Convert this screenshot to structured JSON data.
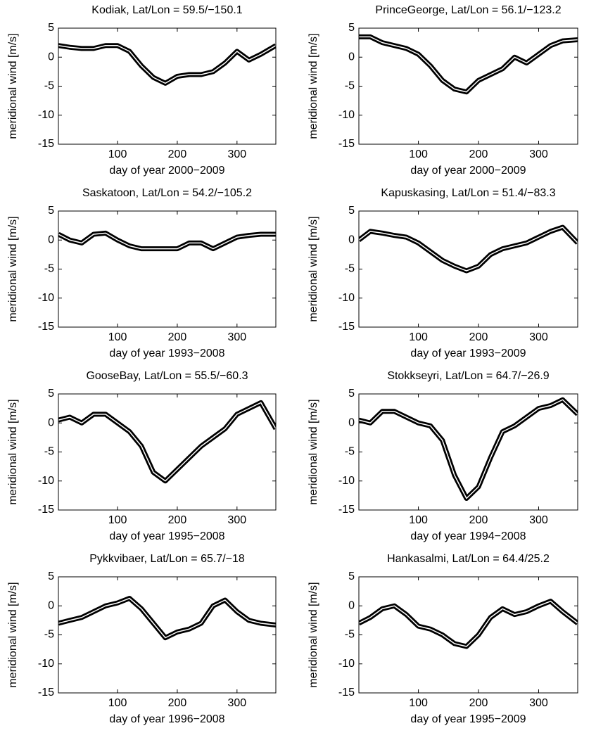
{
  "chart_data": [
    {
      "type": "line",
      "title": "Kodiak, Lat/Lon = 59.5/−150.1",
      "x_label": "day of year 2000−2009",
      "y_label": "meridional wind [m/s]",
      "x": [
        1,
        20,
        40,
        60,
        80,
        100,
        120,
        140,
        160,
        180,
        200,
        220,
        240,
        260,
        280,
        300,
        320,
        340,
        365
      ],
      "series": [
        {
          "color": "#000000",
          "values": [
            2,
            1.7,
            1.5,
            1.5,
            2,
            2,
            1,
            -1.5,
            -3.5,
            -4.5,
            -3.3,
            -3,
            -3,
            -2.5,
            -1,
            1,
            -0.5,
            0.5,
            2
          ]
        }
      ],
      "xlim": [
        1,
        365
      ],
      "xticks": [
        100,
        200,
        300
      ],
      "ylim": [
        -15,
        5
      ],
      "yticks": [
        5,
        0,
        -5,
        -10,
        -15
      ]
    },
    {
      "type": "line",
      "title": "PrinceGeorge, Lat/Lon = 56.1/−123.2",
      "x_label": "day of year 2000−2009",
      "y_label": "meridional wind [m/s]",
      "x": [
        1,
        20,
        40,
        60,
        80,
        100,
        120,
        140,
        160,
        180,
        200,
        220,
        240,
        260,
        280,
        300,
        320,
        340,
        365
      ],
      "series": [
        {
          "color": "#000000",
          "values": [
            3.5,
            3.5,
            2.5,
            2,
            1.5,
            0.5,
            -1.5,
            -4,
            -5.5,
            -6,
            -4,
            -3,
            -2,
            0,
            -1,
            0.5,
            2,
            2.8,
            3
          ]
        }
      ],
      "xlim": [
        1,
        365
      ],
      "xticks": [
        100,
        200,
        300
      ],
      "ylim": [
        -15,
        5
      ],
      "yticks": [
        5,
        0,
        -5,
        -10,
        -15
      ]
    },
    {
      "type": "line",
      "title": "Saskatoon, Lat/Lon = 54.2/−105.2",
      "x_label": "day of year 1993−2008",
      "y_label": "meridional wind [m/s]",
      "x": [
        1,
        20,
        40,
        60,
        80,
        100,
        120,
        140,
        160,
        180,
        200,
        220,
        240,
        260,
        280,
        300,
        320,
        340,
        365
      ],
      "series": [
        {
          "color": "#000000",
          "values": [
            1,
            0,
            -0.5,
            1,
            1.2,
            0,
            -1,
            -1.5,
            -1.5,
            -1.5,
            -1.5,
            -0.5,
            -0.5,
            -1.5,
            -0.5,
            0.5,
            0.8,
            1,
            1
          ]
        }
      ],
      "xlim": [
        1,
        365
      ],
      "xticks": [
        100,
        200,
        300
      ],
      "ylim": [
        -15,
        5
      ],
      "yticks": [
        5,
        0,
        -5,
        -10,
        -15
      ]
    },
    {
      "type": "line",
      "title": "Kapuskasing, Lat/Lon = 51.4/−83.3",
      "x_label": "day of year 1993−2009",
      "y_label": "meridional wind [m/s]",
      "x": [
        1,
        20,
        40,
        60,
        80,
        100,
        120,
        140,
        160,
        180,
        200,
        220,
        240,
        260,
        280,
        300,
        320,
        340,
        365
      ],
      "series": [
        {
          "color": "#000000",
          "values": [
            0,
            1.5,
            1.2,
            0.8,
            0.5,
            -0.5,
            -2,
            -3.5,
            -4.5,
            -5.3,
            -4.5,
            -2.5,
            -1.5,
            -1,
            -0.5,
            0.5,
            1.5,
            2.2,
            -0.5
          ]
        }
      ],
      "xlim": [
        1,
        365
      ],
      "xticks": [
        100,
        200,
        300
      ],
      "ylim": [
        -15,
        5
      ],
      "yticks": [
        5,
        0,
        -5,
        -10,
        -15
      ]
    },
    {
      "type": "line",
      "title": "GooseBay, Lat/Lon = 55.5/−60.3",
      "x_label": "day of year 1995−2008",
      "y_label": "meridional wind [m/s]",
      "x": [
        1,
        20,
        40,
        60,
        80,
        100,
        120,
        140,
        160,
        180,
        200,
        220,
        240,
        260,
        280,
        300,
        320,
        340,
        365
      ],
      "series": [
        {
          "color": "#000000",
          "values": [
            0.5,
            1,
            0,
            1.5,
            1.5,
            0,
            -1.5,
            -4,
            -8.5,
            -10,
            -8,
            -6,
            -4,
            -2.5,
            -1,
            1.5,
            2.5,
            3.5,
            -1
          ]
        }
      ],
      "xlim": [
        1,
        365
      ],
      "xticks": [
        100,
        200,
        300
      ],
      "ylim": [
        -15,
        5
      ],
      "yticks": [
        5,
        0,
        -5,
        -10,
        -15
      ]
    },
    {
      "type": "line",
      "title": "Stokkseyri, Lat/Lon = 64.7/−26.9",
      "x_label": "day of year 1994−2008",
      "y_label": "meridional wind [m/s]",
      "x": [
        1,
        20,
        40,
        60,
        80,
        100,
        120,
        140,
        160,
        180,
        200,
        220,
        240,
        260,
        280,
        300,
        320,
        340,
        365
      ],
      "series": [
        {
          "color": "#000000",
          "values": [
            0.5,
            0,
            2,
            2,
            1,
            0,
            -0.5,
            -3,
            -9,
            -13,
            -11,
            -6,
            -1.5,
            -0.5,
            1,
            2.5,
            3,
            4,
            1.5
          ]
        }
      ],
      "xlim": [
        1,
        365
      ],
      "xticks": [
        100,
        200,
        300
      ],
      "ylim": [
        -15,
        5
      ],
      "yticks": [
        5,
        0,
        -5,
        -10,
        -15
      ]
    },
    {
      "type": "line",
      "title": "Pykkvibaer, Lat/Lon = 65.7/−18",
      "x_label": "day of year 1996−2008",
      "y_label": "meridional wind [m/s]",
      "x": [
        1,
        20,
        40,
        60,
        80,
        100,
        120,
        140,
        160,
        180,
        200,
        220,
        240,
        260,
        280,
        300,
        320,
        340,
        365
      ],
      "series": [
        {
          "color": "#000000",
          "values": [
            -3,
            -2.5,
            -2,
            -1,
            0,
            0.5,
            1.3,
            -0.5,
            -3,
            -5.5,
            -4.5,
            -4,
            -3,
            0,
            1,
            -1,
            -2.5,
            -3,
            -3.3
          ]
        }
      ],
      "xlim": [
        1,
        365
      ],
      "xticks": [
        100,
        200,
        300
      ],
      "ylim": [
        -15,
        5
      ],
      "yticks": [
        5,
        0,
        -5,
        -10,
        -15
      ]
    },
    {
      "type": "line",
      "title": "Hankasalmi, Lat/Lon = 64.4/25.2",
      "x_label": "day of year 1995−2009",
      "y_label": "meridional wind [m/s]",
      "x": [
        1,
        20,
        40,
        60,
        80,
        100,
        120,
        140,
        160,
        180,
        200,
        220,
        240,
        260,
        280,
        300,
        320,
        340,
        365
      ],
      "series": [
        {
          "color": "#000000",
          "values": [
            -3,
            -2,
            -0.5,
            0,
            -1.5,
            -3.5,
            -4,
            -5,
            -6.5,
            -7,
            -5,
            -2,
            -0.5,
            -1.5,
            -1,
            0,
            0.8,
            -1,
            -3
          ]
        }
      ],
      "xlim": [
        1,
        365
      ],
      "xticks": [
        100,
        200,
        300
      ],
      "ylim": [
        -15,
        5
      ],
      "yticks": [
        5,
        0,
        -5,
        -10,
        -15
      ]
    }
  ]
}
